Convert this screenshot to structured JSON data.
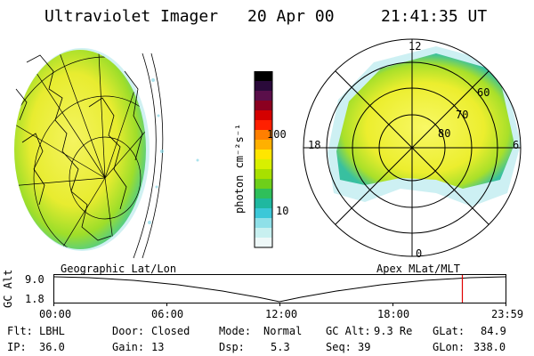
{
  "header": {
    "instrument": "Ultraviolet Imager",
    "date": "20 Apr 00",
    "time": "21:41:35 UT"
  },
  "colorbar": {
    "unit_label": "photon cm⁻²s⁻¹",
    "ticks": [
      "100",
      "10"
    ],
    "colors": [
      "#000000",
      "#2a0a3a",
      "#5a0f4a",
      "#8b0020",
      "#d40000",
      "#ff2000",
      "#ff7f00",
      "#ffb000",
      "#ffe600",
      "#d8f000",
      "#a8e000",
      "#6ecf1a",
      "#2fbf5a",
      "#1fb8a0",
      "#3cc8d8",
      "#8fe0e8",
      "#c8f0f0",
      "#eef8f8"
    ]
  },
  "polar_plot": {
    "mlt_labels": {
      "top": "12",
      "left": "18",
      "right": "6",
      "bottom": "0"
    },
    "lat_labels": [
      "60",
      "70",
      "80"
    ]
  },
  "timeline": {
    "left_title": "Geographic Lat/Lon",
    "right_title": "Apex MLat/MLT",
    "axis_label": "GC Alt",
    "y_ticks": [
      "9.0",
      "1.8"
    ],
    "x_ticks": [
      "00:00",
      "06:00",
      "12:00",
      "18:00",
      "23:59"
    ],
    "marker_time": "21:41:35"
  },
  "status": {
    "flt_label": "Flt:",
    "flt_value": "LBHL",
    "ip_label": "IP:",
    "ip_value": "36.0",
    "door_label": "Door:",
    "door_value": "Closed",
    "gain_label": "Gain:",
    "gain_value": "13",
    "mode_label": "Mode:",
    "mode_value": "Normal",
    "dsp_label": "Dsp:",
    "dsp_value": "5.3",
    "gcalt_label": "GC Alt:",
    "gcalt_value": "9.3 Re",
    "seq_label": "Seq:",
    "seq_value": "39",
    "glat_label": "GLat:",
    "glat_value": "84.9",
    "glon_label": "GLon:",
    "glon_value": "338.0"
  },
  "accent_colors": {
    "marker": "#e00000",
    "grid": "#000000"
  }
}
